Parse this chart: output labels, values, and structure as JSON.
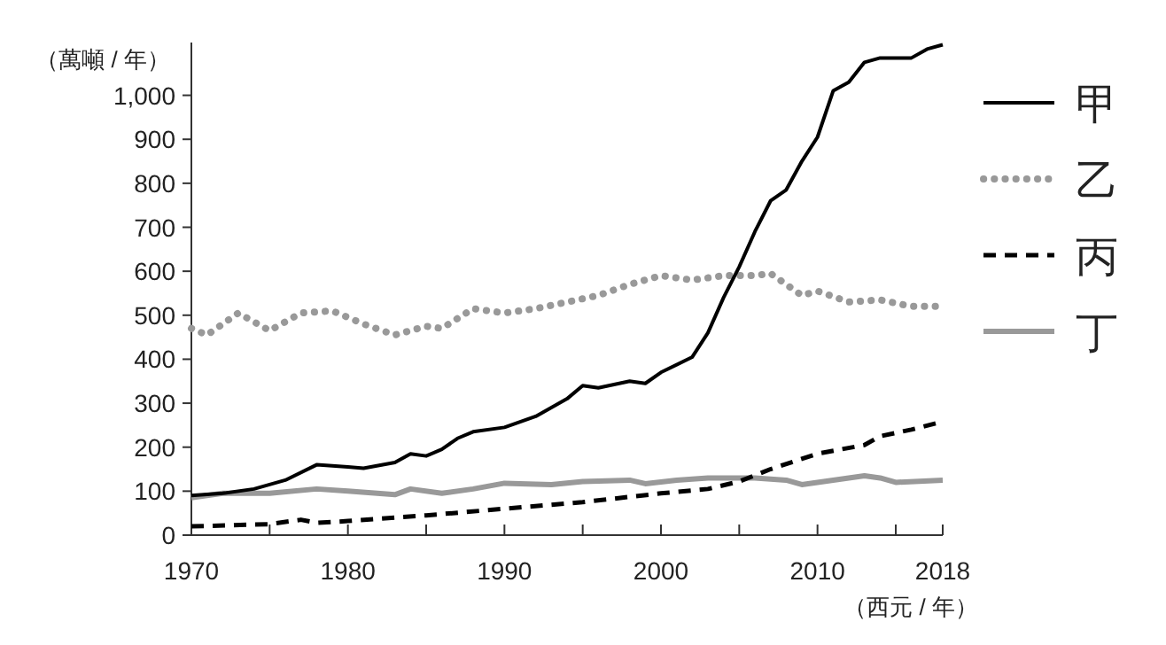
{
  "chart_data": {
    "type": "line",
    "ylabel": "（萬噸 / 年）",
    "xlabel": "（西元 / 年）",
    "xlim": [
      1970,
      2018
    ],
    "ylim": [
      0,
      1120
    ],
    "xticks": [
      1970,
      {
        "value": 1975,
        "label": null
      },
      1980,
      {
        "value": 1985,
        "label": null
      },
      1990,
      {
        "value": 1995,
        "label": null
      },
      2000,
      {
        "value": 2005,
        "label": null
      },
      2010,
      {
        "value": 2015,
        "label": null
      },
      2018
    ],
    "yticks": [
      0,
      100,
      200,
      300,
      400,
      500,
      600,
      700,
      800,
      900,
      {
        "value": 1000,
        "label": "1,000"
      }
    ],
    "grid": false,
    "legend": "right",
    "marker": "none",
    "series": [
      {
        "name": "甲",
        "color": "#000000",
        "line_style": "solid",
        "x": [
          1970,
          1972,
          1974,
          1976,
          1978,
          1980,
          1981,
          1983,
          1984,
          1985,
          1986,
          1987,
          1988,
          1990,
          1992,
          1994,
          1995,
          1996,
          1998,
          1999,
          2000,
          2002,
          2003,
          2004,
          2005,
          2006,
          2007,
          2008,
          2009,
          2010,
          2011,
          2012,
          2013,
          2014,
          2015,
          2016,
          2017,
          2018
        ],
        "values": [
          90,
          95,
          105,
          125,
          160,
          155,
          152,
          165,
          185,
          180,
          195,
          220,
          235,
          245,
          270,
          310,
          340,
          335,
          350,
          345,
          370,
          405,
          460,
          540,
          610,
          690,
          760,
          785,
          850,
          905,
          1010,
          1030,
          1075,
          1085,
          1085,
          1085,
          1105,
          1115
        ]
      },
      {
        "name": "乙",
        "color": "#999999",
        "line_style": "dotted",
        "x": [
          1970,
          1971,
          1973,
          1975,
          1977,
          1979,
          1981,
          1983,
          1985,
          1986,
          1988,
          1990,
          1992,
          1994,
          1996,
          1998,
          2000,
          2002,
          2004,
          2006,
          2007,
          2009,
          2010,
          2012,
          2014,
          2016,
          2018
        ],
        "values": [
          470,
          455,
          505,
          465,
          505,
          510,
          480,
          455,
          475,
          470,
          515,
          505,
          515,
          530,
          545,
          570,
          590,
          580,
          590,
          590,
          595,
          545,
          555,
          530,
          535,
          520,
          520
        ]
      },
      {
        "name": "丙",
        "color": "#000000",
        "line_style": "dashed",
        "x": [
          1970,
          1975,
          1977,
          1978,
          1980,
          1985,
          1990,
          1995,
          2000,
          2003,
          2005,
          2007,
          2010,
          2013,
          2014,
          2016,
          2018
        ],
        "values": [
          20,
          25,
          35,
          28,
          32,
          45,
          60,
          75,
          95,
          105,
          122,
          150,
          185,
          205,
          225,
          240,
          258
        ]
      },
      {
        "name": "丁",
        "color": "#999999",
        "line_style": "solid",
        "x": [
          1970,
          1972,
          1975,
          1978,
          1980,
          1983,
          1984,
          1986,
          1988,
          1990,
          1993,
          1995,
          1998,
          1999,
          2001,
          2003,
          2006,
          2008,
          2009,
          2011,
          2013,
          2014,
          2015,
          2018
        ],
        "values": [
          85,
          95,
          95,
          105,
          100,
          92,
          105,
          95,
          105,
          118,
          115,
          122,
          125,
          117,
          125,
          130,
          130,
          125,
          115,
          125,
          135,
          130,
          120,
          125
        ]
      }
    ]
  }
}
